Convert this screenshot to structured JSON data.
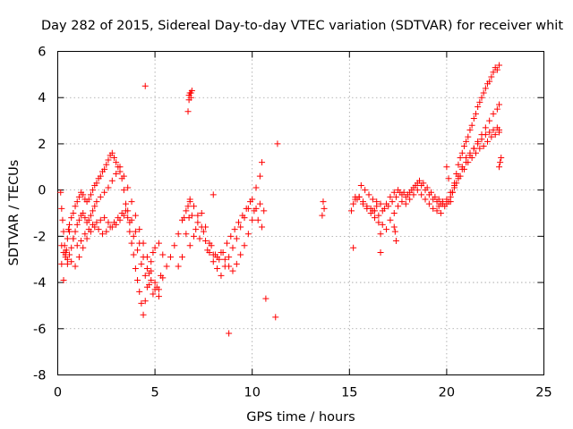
{
  "chart_data": {
    "type": "scatter",
    "title": "Day 282 of 2015, Sidereal Day-to-day VTEC variation (SDTVAR) for receiver whit",
    "xlabel": "GPS time / hours",
    "ylabel": "SDTVAR / TECUs",
    "xlim": [
      0,
      25
    ],
    "ylim": [
      -8,
      6
    ],
    "xticks": [
      0,
      5,
      10,
      15,
      20,
      25
    ],
    "yticks": [
      -8,
      -6,
      -4,
      -2,
      0,
      2,
      4,
      6
    ],
    "grid": true,
    "marker": "plus",
    "color": "#ff0000",
    "series": [
      {
        "name": "SDTVAR",
        "x": [
          0.15,
          0.2,
          0.25,
          0.3,
          0.35,
          0.4,
          0.45,
          0.5,
          0.55,
          0.6,
          0.7,
          0.8,
          0.9,
          1.0,
          1.1,
          1.2,
          1.3,
          1.4,
          1.5,
          1.6,
          1.7,
          1.8,
          1.9,
          2.0,
          2.1,
          2.2,
          2.3,
          2.4,
          2.5,
          2.6,
          2.7,
          2.8,
          2.9,
          3.0,
          3.1,
          3.2,
          3.3,
          3.4,
          3.5,
          3.6,
          3.7,
          3.8,
          3.9,
          4.0,
          4.1,
          4.2,
          4.3,
          4.4,
          4.5,
          4.6,
          4.7,
          4.8,
          4.9,
          5.0,
          5.2,
          5.4,
          5.6,
          5.8,
          6.0,
          6.2,
          6.4,
          6.6,
          6.8,
          7.0,
          7.2,
          7.4,
          7.6,
          7.8,
          8.0,
          8.2,
          8.4,
          8.6,
          8.8,
          9.0,
          9.2,
          9.4,
          9.6,
          9.8,
          10.0,
          10.2,
          10.4,
          10.5,
          0.2,
          0.3,
          0.4,
          0.5,
          0.6,
          0.7,
          0.8,
          0.9,
          1.0,
          1.1,
          1.2,
          1.3,
          1.4,
          1.5,
          1.6,
          1.7,
          1.8,
          1.9,
          2.0,
          2.2,
          2.4,
          2.6,
          2.8,
          3.0,
          3.2,
          3.4,
          3.6,
          3.8,
          4.0,
          4.2,
          4.4,
          4.6,
          4.8,
          5.0,
          5.2,
          5.4,
          0.2,
          0.4,
          0.6,
          0.8,
          1.0,
          1.2,
          1.4,
          1.6,
          1.8,
          2.0,
          2.2,
          2.4,
          2.6,
          2.8,
          3.0,
          3.2,
          3.4,
          3.6,
          3.8,
          4.0,
          4.2,
          4.4,
          4.6,
          4.8,
          5.0,
          5.2,
          0.3,
          0.5,
          0.7,
          0.9,
          1.1,
          1.3,
          1.5,
          1.7,
          1.9,
          2.1,
          2.3,
          2.5,
          2.7,
          2.9,
          3.1,
          3.3,
          3.5,
          3.7,
          3.9,
          4.1,
          4.3,
          4.5,
          4.7,
          4.9,
          5.1,
          5.3,
          6.2,
          6.4,
          6.6,
          6.8,
          7.0,
          7.2,
          7.4,
          7.6,
          7.8,
          8.0,
          8.2,
          8.4,
          8.6,
          8.8,
          9.0,
          9.2,
          9.4,
          9.6,
          9.8,
          10.0,
          10.2,
          10.4,
          10.6,
          6.5,
          6.7,
          6.9,
          7.1,
          7.3,
          7.5,
          7.7,
          7.9,
          8.1,
          8.3,
          8.5,
          8.7,
          8.9,
          9.1,
          9.3,
          9.5,
          9.7,
          9.9,
          10.1,
          10.3,
          10.5,
          6.75,
          6.8,
          6.85,
          6.9,
          6.75,
          6.8,
          6.85,
          6.75,
          6.8,
          6.7,
          4.5,
          8.0,
          8.8,
          10.7,
          11.2,
          11.3,
          13.6,
          13.7,
          13.65,
          15.1,
          15.3,
          15.5,
          15.7,
          15.9,
          16.1,
          16.3,
          16.5,
          16.7,
          16.9,
          17.1,
          17.3,
          17.5,
          17.7,
          17.9,
          18.1,
          18.3,
          18.5,
          18.7,
          18.9,
          19.1,
          19.3,
          19.5,
          19.7,
          19.9,
          15.2,
          15.4,
          15.6,
          15.8,
          16.0,
          16.2,
          16.4,
          16.6,
          16.8,
          17.0,
          17.2,
          17.4,
          17.6,
          17.8,
          18.0,
          18.2,
          18.4,
          18.6,
          18.8,
          19.0,
          19.2,
          19.4,
          19.6,
          19.8,
          15.3,
          15.5,
          15.7,
          15.9,
          16.1,
          16.3,
          16.5,
          16.7,
          16.9,
          17.1,
          17.3,
          17.5,
          17.7,
          17.9,
          18.1,
          18.3,
          18.5,
          18.7,
          18.9,
          19.1,
          19.3,
          19.5,
          19.7,
          16.2,
          16.4,
          16.6,
          17.3,
          17.35,
          17.4,
          15.2,
          16.6,
          20.0,
          20.1,
          20.2,
          20.3,
          20.4,
          20.5,
          20.6,
          20.7,
          20.8,
          20.9,
          21.0,
          21.1,
          21.2,
          21.3,
          21.4,
          21.5,
          21.6,
          21.7,
          21.8,
          21.9,
          22.0,
          22.1,
          22.2,
          22.3,
          22.4,
          22.5,
          22.6,
          22.7,
          20.0,
          20.2,
          20.4,
          20.6,
          20.8,
          21.0,
          21.2,
          21.4,
          21.6,
          21.8,
          22.0,
          22.2,
          22.4,
          22.6,
          22.7,
          20.1,
          20.3,
          20.5,
          20.7,
          20.9,
          21.1,
          21.3,
          21.5,
          21.7,
          21.9,
          22.1,
          22.3,
          22.5,
          22.7,
          19.6,
          19.8,
          20.0,
          20.2,
          20.4,
          20.6,
          20.8,
          21.0,
          21.2,
          21.4,
          21.6,
          21.8,
          22.0,
          22.2,
          22.4,
          22.6,
          22.7,
          22.7,
          22.75,
          22.8
        ],
        "y": [
          -0.1,
          -0.8,
          -1.3,
          -1.8,
          -2.4,
          -2.8,
          -2.6,
          -2.1,
          -1.7,
          -1.5,
          -1.2,
          -1.0,
          -0.7,
          -0.5,
          -0.3,
          -0.1,
          -0.2,
          -0.4,
          -0.5,
          -0.4,
          -0.2,
          0.0,
          0.2,
          0.3,
          0.5,
          0.6,
          0.8,
          0.9,
          1.1,
          1.3,
          1.5,
          1.6,
          1.4,
          1.2,
          1.0,
          0.8,
          0.5,
          0.0,
          -0.6,
          -1.2,
          -1.8,
          -2.3,
          -2.8,
          -3.4,
          -3.9,
          -4.4,
          -4.9,
          -5.4,
          -4.8,
          -4.2,
          -3.6,
          -3.1,
          -2.7,
          -2.5,
          -2.3,
          -2.8,
          -3.3,
          -2.9,
          -2.4,
          -1.9,
          -1.3,
          -0.9,
          -0.4,
          -0.7,
          -1.1,
          -1.6,
          -2.2,
          -2.7,
          -3.1,
          -3.4,
          -3.7,
          -3.3,
          -2.9,
          -2.5,
          -2.1,
          -1.6,
          -1.2,
          -0.8,
          -0.4,
          0.1,
          0.6,
          1.2,
          -2.4,
          -2.7,
          -2.9,
          -3.0,
          -2.8,
          -2.5,
          -2.1,
          -1.8,
          -1.5,
          -1.3,
          -1.1,
          -1.0,
          -1.2,
          -1.4,
          -1.3,
          -1.1,
          -0.9,
          -0.7,
          -0.5,
          -0.3,
          -0.1,
          0.1,
          0.4,
          0.7,
          1.0,
          0.6,
          0.1,
          -0.5,
          -1.1,
          -1.7,
          -2.3,
          -2.9,
          -3.5,
          -4.0,
          -4.3,
          -3.8,
          -3.2,
          -2.7,
          -1.8,
          -2.1,
          -2.4,
          -2.2,
          -1.9,
          -1.7,
          -1.5,
          -1.4,
          -1.3,
          -1.2,
          -1.4,
          -1.6,
          -1.5,
          -1.3,
          -1.1,
          -0.9,
          -1.3,
          -1.8,
          -2.3,
          -2.9,
          -3.4,
          -3.9,
          -4.3,
          -4.6,
          -3.9,
          -3.2,
          -3.1,
          -3.3,
          -2.9,
          -2.5,
          -2.1,
          -1.8,
          -1.6,
          -1.7,
          -1.9,
          -1.8,
          -1.6,
          -1.4,
          -1.2,
          -1.0,
          -0.9,
          -1.4,
          -2.0,
          -2.6,
          -3.2,
          -3.7,
          -4.1,
          -4.5,
          -4.2,
          -3.7,
          -3.3,
          -2.9,
          -1.9,
          -2.4,
          -2.0,
          -1.4,
          -1.0,
          -1.6,
          -2.3,
          -2.8,
          -2.9,
          -2.7,
          -3.0,
          -3.3,
          -3.5,
          -3.2,
          -2.8,
          -2.4,
          -1.9,
          -1.3,
          -0.8,
          -0.6,
          -0.9,
          -1.2,
          -0.7,
          -1.1,
          -1.7,
          -2.1,
          -1.8,
          -2.6,
          -2.4,
          -2.8,
          -3.0,
          -2.7,
          -2.3,
          -2.0,
          -1.7,
          -1.4,
          -1.1,
          -0.8,
          -0.5,
          -0.9,
          -1.3,
          -1.6,
          -1.2,
          -0.5,
          4.2,
          4.3,
          4.1,
          4.2,
          4.0,
          3.9,
          4.2,
          3.4,
          4.5,
          -0.2,
          -6.2,
          -4.7,
          -5.5,
          2.0,
          -1.1,
          -0.8,
          -0.5,
          -0.9,
          -0.3,
          -0.3,
          -0.5,
          -0.7,
          -0.8,
          -0.9,
          -1.1,
          -0.9,
          -0.6,
          -0.3,
          -0.1,
          0.0,
          -0.2,
          -0.3,
          -0.1,
          0.1,
          0.3,
          0.2,
          0.0,
          -0.2,
          -0.4,
          -0.5,
          -0.6,
          -0.7,
          -0.6,
          -0.4,
          0.2,
          0.0,
          -0.2,
          -0.4,
          -0.5,
          -0.6,
          -0.8,
          -0.7,
          -0.5,
          -0.3,
          -0.1,
          -0.1,
          -0.2,
          0.0,
          0.2,
          0.4,
          0.3,
          0.1,
          -0.1,
          -0.3,
          -0.4,
          -0.5,
          -0.4,
          -0.3,
          -0.6,
          -0.8,
          -1.0,
          -1.2,
          -1.4,
          -1.5,
          -1.7,
          -1.3,
          -1.0,
          -0.7,
          -0.5,
          -0.6,
          -0.4,
          -0.2,
          0.0,
          -0.2,
          -0.4,
          -0.6,
          -0.8,
          -0.9,
          -1.0,
          -0.9,
          -0.7,
          -1.9,
          -1.6,
          -1.8,
          -2.2,
          -2.5,
          -2.7,
          1.0,
          0.5,
          -0.5,
          -0.1,
          0.3,
          0.7,
          1.1,
          1.4,
          1.6,
          1.9,
          2.1,
          2.3,
          2.6,
          2.8,
          3.1,
          3.3,
          3.6,
          3.8,
          4.0,
          4.2,
          4.4,
          4.6,
          4.7,
          4.9,
          5.1,
          5.3,
          5.2,
          5.4,
          -0.6,
          -0.3,
          0.1,
          0.5,
          0.9,
          1.2,
          1.5,
          1.8,
          2.1,
          2.4,
          2.7,
          3.0,
          3.3,
          3.5,
          3.7,
          -0.5,
          -0.1,
          0.3,
          0.6,
          0.9,
          1.2,
          1.4,
          1.6,
          1.8,
          1.9,
          2.1,
          2.3,
          2.4,
          2.6,
          -0.7,
          -0.6,
          -0.4,
          -0.1,
          0.2,
          0.6,
          1.0,
          1.4,
          1.6,
          1.8,
          2.0,
          2.2,
          2.4,
          2.5,
          2.6,
          2.7,
          2.5,
          1.0,
          1.2,
          1.4
        ]
      }
    ]
  }
}
